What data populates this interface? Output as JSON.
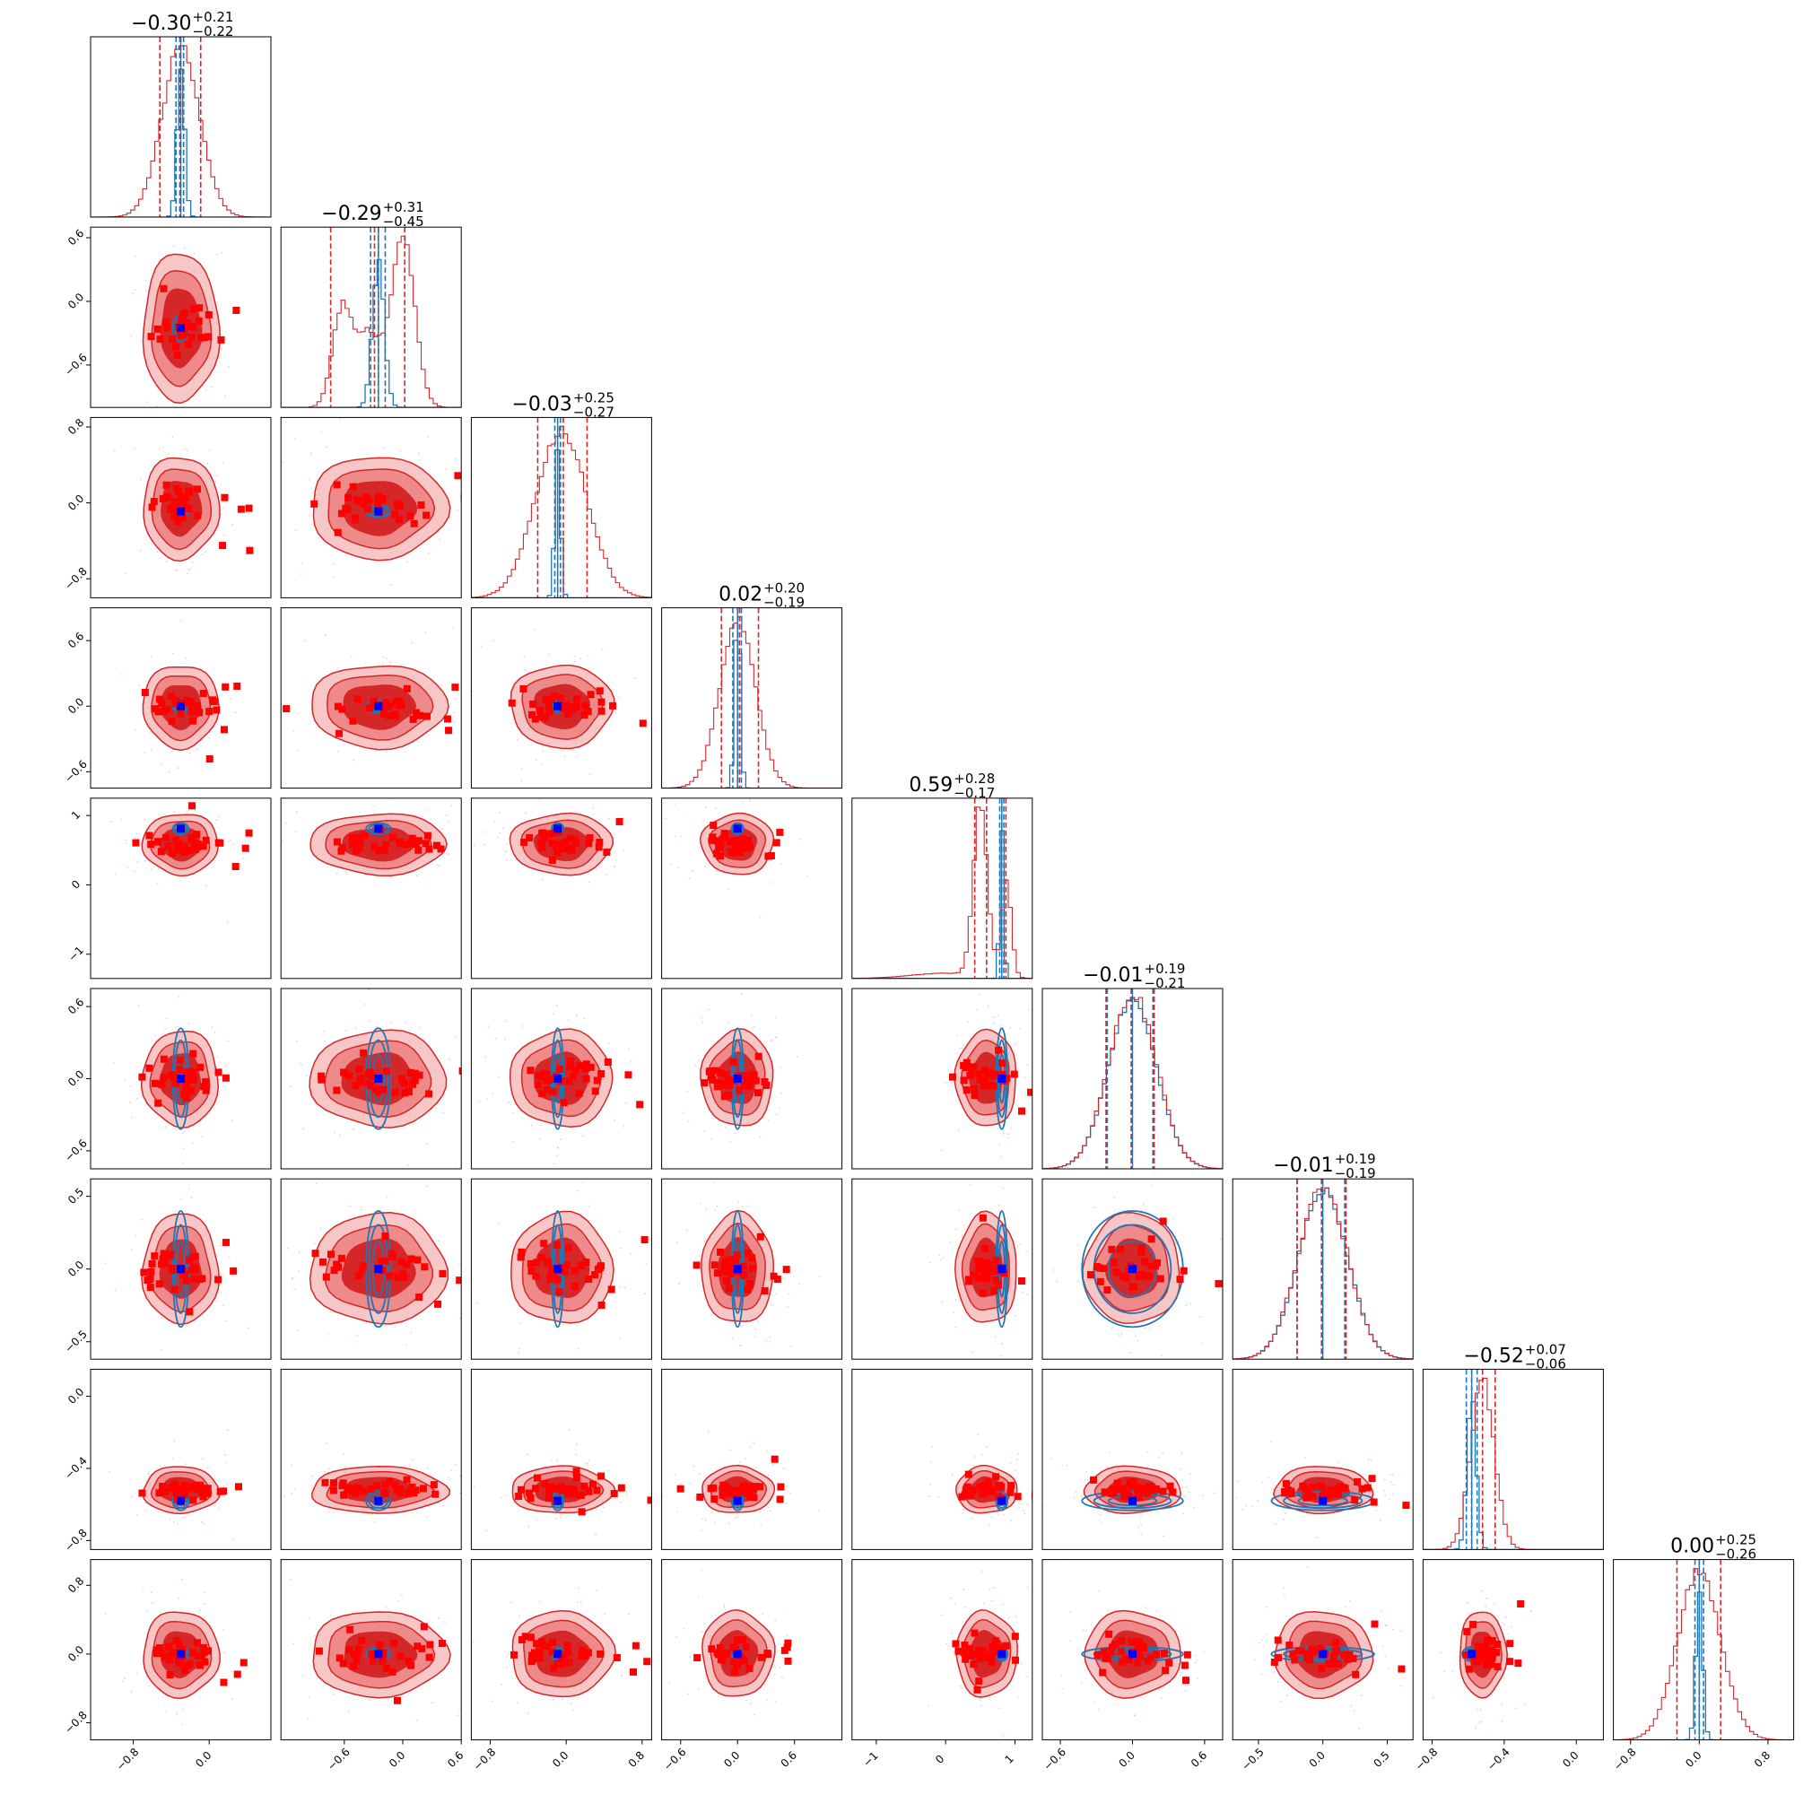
{
  "chart_data": {
    "type": "scatter",
    "subtype": "corner-plot",
    "n_params": 9,
    "colors": {
      "samples_main": "#d62728",
      "samples_fill_dark": "#d62728",
      "samples_fill_light": "#f08080",
      "samples_other": "#1f77b4",
      "marker_main": "#ff0000",
      "marker_truth": "#0000ff"
    },
    "titles": [
      {
        "median": "−0.30",
        "plus": "+0.21",
        "minus": "−0.22"
      },
      {
        "median": "−0.29",
        "plus": "+0.31",
        "minus": "−0.45"
      },
      {
        "median": "−0.03",
        "plus": "+0.25",
        "minus": "−0.27"
      },
      {
        "median": "0.02",
        "plus": "+0.20",
        "minus": "−0.19"
      },
      {
        "median": "0.59",
        "plus": "+0.28",
        "minus": "−0.17"
      },
      {
        "median": "−0.01",
        "plus": "+0.19",
        "minus": "−0.21"
      },
      {
        "median": "−0.01",
        "plus": "+0.19",
        "minus": "−0.19"
      },
      {
        "median": "−0.52",
        "plus": "+0.07",
        "minus": "−0.06"
      },
      {
        "median": "0.00",
        "plus": "+0.25",
        "minus": "−0.26"
      }
    ],
    "x_ranges": [
      [
        -1.25,
        0.65
      ],
      [
        -1.25,
        0.6
      ],
      [
        -1.0,
        0.9
      ],
      [
        -0.8,
        1.1
      ],
      [
        -1.35,
        1.25
      ],
      [
        -0.75,
        0.75
      ],
      [
        -0.7,
        0.7
      ],
      [
        -0.85,
        0.15
      ],
      [
        -1.0,
        1.1
      ]
    ],
    "y_ranges": [
      null,
      [
        -1.0,
        0.7
      ],
      [
        -1.0,
        0.9
      ],
      [
        -0.75,
        0.9
      ],
      [
        -1.35,
        1.25
      ],
      [
        -0.75,
        0.75
      ],
      [
        -0.62,
        0.62
      ],
      [
        -0.85,
        0.15
      ],
      [
        -1.0,
        1.1
      ]
    ],
    "x_ticks": [
      {
        "v": [
          -0.8,
          0.0
        ],
        "l": [
          "−0.8",
          "0.0"
        ]
      },
      {
        "v": [
          -0.6,
          0.0,
          0.6
        ],
        "l": [
          "−0.6",
          "0.0",
          "0.6"
        ]
      },
      {
        "v": [
          -0.8,
          0.0,
          0.8
        ],
        "l": [
          "−0.8",
          "0.0",
          "0.8"
        ]
      },
      {
        "v": [
          -0.6,
          0.0,
          0.6
        ],
        "l": [
          "−0.6",
          "0.0",
          "0.6"
        ]
      },
      {
        "v": [
          -1,
          0,
          1
        ],
        "l": [
          "−1",
          "0",
          "1"
        ]
      },
      {
        "v": [
          -0.6,
          0.0,
          0.6
        ],
        "l": [
          "−0.6",
          "0.0",
          "0.6"
        ]
      },
      {
        "v": [
          -0.5,
          0.0,
          0.5
        ],
        "l": [
          "−0.5",
          "0.0",
          "0.5"
        ]
      },
      {
        "v": [
          -0.8,
          -0.4,
          0.0
        ],
        "l": [
          "−0.8",
          "−0.4",
          "0.0"
        ]
      },
      {
        "v": [
          -0.8,
          0.0,
          0.8
        ],
        "l": [
          "−0.8",
          "0.0",
          "0.8"
        ]
      }
    ],
    "y_ticks": [
      null,
      {
        "v": [
          0.6,
          0.0,
          -0.6
        ],
        "l": [
          "0.6",
          "0.0",
          "−0.6"
        ]
      },
      {
        "v": [
          0.8,
          0.0,
          -0.8
        ],
        "l": [
          "0.8",
          "0.0",
          "−0.8"
        ]
      },
      {
        "v": [
          0.6,
          0.0,
          -0.6
        ],
        "l": [
          "0.6",
          "0.0",
          "−0.6"
        ]
      },
      {
        "v": [
          1,
          0,
          -1
        ],
        "l": [
          "1",
          "0",
          "−1"
        ]
      },
      {
        "v": [
          0.6,
          0.0,
          -0.6
        ],
        "l": [
          "0.6",
          "0.0",
          "−0.6"
        ]
      },
      {
        "v": [
          0.5,
          0.0,
          -0.5
        ],
        "l": [
          "0.5",
          "0.0",
          "−0.5"
        ]
      },
      {
        "v": [
          0.0,
          -0.4,
          -0.8
        ],
        "l": [
          "0.0",
          "−0.4",
          "−0.8"
        ]
      },
      {
        "v": [
          0.8,
          0.0,
          -0.8
        ],
        "l": [
          "0.8",
          "0.0",
          "−0.8"
        ]
      }
    ],
    "main_quantiles": [
      [
        -0.52,
        -0.3,
        -0.09
      ],
      [
        -0.74,
        -0.29,
        0.02
      ],
      [
        -0.3,
        -0.03,
        0.22
      ],
      [
        -0.17,
        0.02,
        0.22
      ],
      [
        0.42,
        0.59,
        0.87
      ],
      [
        -0.22,
        -0.01,
        0.18
      ],
      [
        -0.2,
        -0.01,
        0.18
      ],
      [
        -0.58,
        -0.52,
        -0.45
      ],
      [
        -0.26,
        0.0,
        0.25
      ]
    ],
    "other_quantiles": [
      [
        -0.35,
        -0.31,
        -0.27
      ],
      [
        -0.33,
        -0.25,
        -0.18
      ],
      [
        -0.12,
        -0.09,
        -0.06
      ],
      [
        -0.05,
        0.0,
        0.04
      ],
      [
        0.78,
        0.81,
        0.84
      ],
      [
        -0.21,
        -0.01,
        0.17
      ],
      [
        -0.2,
        -0.01,
        0.17
      ],
      [
        -0.61,
        -0.58,
        -0.55
      ],
      [
        -0.05,
        0.0,
        0.05
      ]
    ],
    "main_centers": [
      -0.3,
      -0.25,
      -0.05,
      0.0,
      0.59,
      0.0,
      0.0,
      -0.52,
      0.0
    ],
    "main_sigmas": [
      0.2,
      0.35,
      0.27,
      0.19,
      0.22,
      0.2,
      0.19,
      0.065,
      0.25
    ],
    "other_sigmas": [
      0.04,
      0.06,
      0.03,
      0.03,
      0.03,
      0.2,
      0.19,
      0.025,
      0.04
    ],
    "truth": [
      -0.3,
      -0.25,
      -0.09,
      0.0,
      0.81,
      0.0,
      0.0,
      -0.58,
      0.0
    ]
  }
}
